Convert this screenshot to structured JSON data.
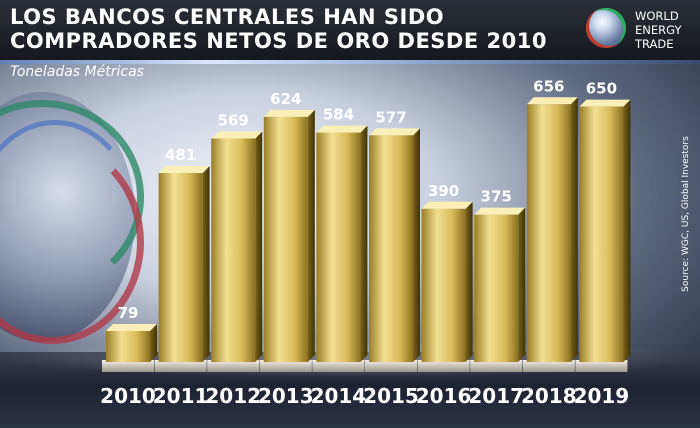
{
  "header": {
    "title_line1": "LOS BANCOS CENTRALES HAN SIDO",
    "title_line2": "COMPRADORES NETOS DE ORO DESDE 2010",
    "logo_line1": "WORLD",
    "logo_line2": "ENERGY",
    "logo_line3": "TRADE"
  },
  "subtitle": "Toneladas Métricas",
  "source": "Source: WGC, US, Global Investors",
  "colors": {
    "bar_light": "#f3df93",
    "bar_mid": "#c9a640",
    "bar_dark": "#6f5a18",
    "header_bg": "#1e2228"
  },
  "chart_data": {
    "type": "bar",
    "title": "LOS BANCOS CENTRALES HAN SIDO COMPRADORES NETOS DE ORO DESDE 2010",
    "ylabel": "Toneladas Métricas",
    "categories": [
      "2010",
      "2011",
      "2012",
      "2013",
      "2014",
      "2015",
      "2016",
      "2017",
      "2018",
      "2019"
    ],
    "values": [
      79,
      481,
      569,
      624,
      584,
      577,
      390,
      375,
      656,
      650
    ],
    "ylim": [
      0,
      700
    ],
    "grid": false,
    "legend": "none"
  }
}
